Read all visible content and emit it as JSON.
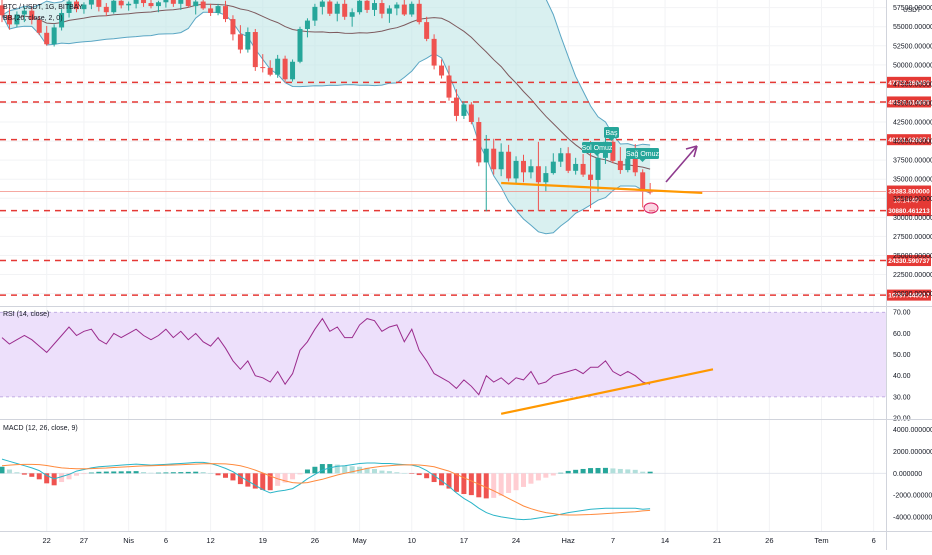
{
  "colors": {
    "up": "#26a69a",
    "down": "#ef5350",
    "bb": "#7d5a5e",
    "bbFill": "#b9e4e4",
    "bbLower": "#5aa6c4",
    "level": "#e53935",
    "trend": "#ff9800",
    "arrow": "#8e3a8e",
    "rsiLine": "#9b2c8d",
    "rsiBand": "#ede0fb",
    "macdLine": "#2bb5c8",
    "signalLine": "#ff8a3d",
    "histUpStrong": "#26a69a",
    "histUpWeak": "#b2dfdb",
    "histDownStrong": "#ef5350",
    "histDownWeak": "#ffcdd2",
    "tagBg": "#26a69a",
    "priceTag": "#e53935"
  },
  "header": {
    "title": "BTC / USDT, 1G, BITBAY",
    "indicator": "BB (20, close, 2, 0)",
    "currency": "USDT"
  },
  "rsi_panel": {
    "title": "RSI (14, close)"
  },
  "macd_panel": {
    "title": "MACD (12, 26, close, 9)"
  },
  "annotations": {
    "left_shoulder": "Sol Omuz",
    "head": "Baş",
    "right_shoulder": "Sağ Omuz"
  },
  "price_box": {
    "value": "33383.800000",
    "countdown": "16:14:49"
  },
  "chart_data": [
    {
      "type": "candlestick",
      "title": "BTC / USDT, 1G, BITBAY",
      "x_ticks": [
        "22",
        "27",
        "Nis",
        "6",
        "12",
        "19",
        "26",
        "May",
        "10",
        "17",
        "24",
        "Haz",
        "7",
        "14",
        "21",
        "26",
        "Tem",
        "6"
      ],
      "y_ticks": [
        "57500.000000",
        "55000.000000",
        "52500.000000",
        "50000.000000",
        "47500.000000",
        "45000.000000",
        "42500.000000",
        "40000.000000",
        "37500.000000",
        "35000.000000",
        "32500.000000",
        "30000.000000",
        "27500.000000",
        "25000.000000",
        "22500.000000",
        "20000.000000"
      ],
      "ylim": [
        18500,
        58500
      ],
      "horizontal_levels": [
        "47702.260450",
        "45129.514685",
        "40181.926674",
        "30880.461213",
        "24330.590737",
        "19797.440917"
      ],
      "current_price": "33383.800000",
      "candles": [
        [
          57800,
          58800,
          55600,
          56500
        ],
        [
          56500,
          57400,
          54600,
          55300
        ],
        [
          55300,
          57000,
          54900,
          56600
        ],
        [
          56600,
          57600,
          55600,
          57100
        ],
        [
          57100,
          57700,
          55300,
          55900
        ],
        [
          55900,
          56400,
          53900,
          54200
        ],
        [
          54200,
          55100,
          52500,
          52700
        ],
        [
          52700,
          55300,
          52400,
          54900
        ],
        [
          54900,
          57300,
          54500,
          56800
        ],
        [
          56800,
          58700,
          56200,
          58300
        ],
        [
          58300,
          58900,
          56900,
          57300
        ],
        [
          57300,
          58200,
          56700,
          57900
        ],
        [
          57900,
          58800,
          57300,
          58500
        ],
        [
          58500,
          58900,
          57000,
          57600
        ],
        [
          57600,
          58100,
          56400,
          56900
        ],
        [
          56900,
          58600,
          56700,
          58400
        ],
        [
          58400,
          58800,
          57400,
          57800
        ],
        [
          57800,
          58300,
          57100,
          58000
        ],
        [
          58000,
          58900,
          57400,
          58600
        ],
        [
          58600,
          58900,
          57600,
          58100
        ],
        [
          58100,
          58800,
          57400,
          57700
        ],
        [
          57700,
          58400,
          56900,
          58200
        ],
        [
          58200,
          58900,
          57500,
          58700
        ],
        [
          58700,
          58900,
          57600,
          58000
        ],
        [
          58000,
          58700,
          57200,
          58500
        ],
        [
          58500,
          58900,
          57500,
          57700
        ],
        [
          57700,
          58600,
          56600,
          58300
        ],
        [
          58300,
          58900,
          57200,
          57400
        ],
        [
          57400,
          58000,
          56400,
          56800
        ],
        [
          56800,
          58000,
          56500,
          57700
        ],
        [
          57700,
          58400,
          55600,
          56000
        ],
        [
          56000,
          56500,
          53200,
          54000
        ],
        [
          54000,
          55200,
          51500,
          52000
        ],
        [
          52000,
          54900,
          51600,
          54300
        ],
        [
          54300,
          54700,
          49200,
          49700
        ],
        [
          49700,
          51400,
          49000,
          49600
        ],
        [
          49600,
          50600,
          48500,
          48700
        ],
        [
          48700,
          51300,
          48300,
          50800
        ],
        [
          50800,
          51200,
          47700,
          48100
        ],
        [
          48100,
          50700,
          47800,
          50400
        ],
        [
          50400,
          55000,
          50200,
          54700
        ],
        [
          54700,
          56100,
          53600,
          55800
        ],
        [
          55800,
          58000,
          55100,
          57600
        ],
        [
          57600,
          58800,
          56600,
          58300
        ],
        [
          58300,
          58900,
          56400,
          56700
        ],
        [
          56700,
          58300,
          55700,
          58000
        ],
        [
          58000,
          58800,
          55900,
          56300
        ],
        [
          56300,
          57400,
          55000,
          56900
        ],
        [
          56900,
          58900,
          56600,
          58400
        ],
        [
          58400,
          58900,
          56800,
          57200
        ],
        [
          57200,
          58600,
          56400,
          58100
        ],
        [
          58100,
          58700,
          56100,
          56700
        ],
        [
          56700,
          57800,
          55500,
          57400
        ],
        [
          57400,
          58200,
          56500,
          57900
        ],
        [
          57900,
          58600,
          56400,
          56600
        ],
        [
          56600,
          58300,
          56300,
          58000
        ],
        [
          58000,
          58800,
          55300,
          55600
        ],
        [
          55600,
          56300,
          53100,
          53400
        ],
        [
          53400,
          54000,
          49400,
          49900
        ],
        [
          49900,
          50700,
          48200,
          48600
        ],
        [
          48600,
          49900,
          45300,
          45700
        ],
        [
          45700,
          46800,
          42600,
          43300
        ],
        [
          43300,
          45200,
          42900,
          44800
        ],
        [
          44800,
          45100,
          42200,
          42500
        ],
        [
          42500,
          43100,
          36700,
          37200
        ],
        [
          37200,
          40800,
          30800,
          39000
        ],
        [
          39000,
          40300,
          35600,
          36300
        ],
        [
          36300,
          39700,
          35400,
          38600
        ],
        [
          38600,
          39500,
          34700,
          35100
        ],
        [
          35100,
          38000,
          34400,
          37400
        ],
        [
          37400,
          38200,
          34600,
          35900
        ],
        [
          35900,
          37600,
          35100,
          36700
        ],
        [
          36700,
          39900,
          30800,
          34600
        ],
        [
          34600,
          36700,
          33400,
          35800
        ],
        [
          35800,
          38400,
          35600,
          37300
        ],
        [
          37300,
          39100,
          36600,
          38400
        ],
        [
          38400,
          39200,
          35800,
          36100
        ],
        [
          36100,
          37800,
          35600,
          37000
        ],
        [
          37000,
          38300,
          35300,
          35600
        ],
        [
          35600,
          40000,
          31200,
          34900
        ],
        [
          34900,
          38200,
          33300,
          37800
        ],
        [
          37800,
          40400,
          37000,
          39900
        ],
        [
          39900,
          41500,
          37100,
          37400
        ],
        [
          37400,
          39200,
          35700,
          36200
        ],
        [
          36200,
          38100,
          35900,
          37700
        ],
        [
          37700,
          39600,
          35400,
          35900
        ],
        [
          35900,
          36300,
          31300,
          33400
        ],
        [
          33400,
          34500,
          33000,
          33383.8
        ]
      ]
    },
    {
      "type": "line",
      "title": "RSI (14, close)",
      "y_ticks": [
        "70.00",
        "60.00",
        "50.00",
        "40.00",
        "30.00",
        "20.00"
      ],
      "ylim": [
        20,
        72
      ],
      "band": [
        30,
        70
      ],
      "series": [
        {
          "values": [
            58,
            55,
            57,
            59,
            57,
            54,
            51,
            55,
            59,
            63,
            59,
            61,
            62,
            57,
            55,
            60,
            58,
            60,
            62,
            59,
            57,
            59,
            62,
            58,
            61,
            57,
            60,
            56,
            54,
            58,
            53,
            47,
            43,
            47,
            40,
            39,
            37,
            42,
            36,
            41,
            52,
            56,
            62,
            67,
            61,
            63,
            58,
            58,
            64,
            67,
            66,
            61,
            63,
            64,
            56,
            62,
            52,
            47,
            41,
            39,
            37,
            34,
            38,
            35,
            31,
            40,
            37,
            39,
            36,
            39,
            38,
            42,
            36,
            37,
            40,
            41,
            42,
            43,
            41,
            44,
            44,
            47,
            42,
            40,
            42,
            40,
            37,
            36
          ]
        }
      ]
    },
    {
      "type": "line",
      "title": "MACD (12, 26, close, 9)",
      "y_ticks": [
        "4000.000000",
        "2000.000000",
        "0.000000",
        "-2000.000000",
        "-4000.000000"
      ],
      "ylim": [
        -5200,
        4800
      ],
      "series": [
        {
          "values": [
            1300,
            1100,
            900,
            700,
            500,
            250,
            -200,
            -500,
            -300,
            -100,
            200,
            350,
            500,
            600,
            650,
            700,
            750,
            800,
            850,
            800,
            750,
            780,
            820,
            860,
            900,
            950,
            1000,
            1000,
            900,
            700,
            450,
            150,
            -300,
            -700,
            -1100,
            -1500,
            -1800,
            -1650,
            -1550,
            -1400,
            -1000,
            -500,
            -100,
            300,
            500,
            650,
            700,
            800,
            900,
            950,
            950,
            900,
            900,
            850,
            800,
            750,
            600,
            250,
            -200,
            -700,
            -1200,
            -1800,
            -2300,
            -2700,
            -3200,
            -3600,
            -3850,
            -4000,
            -4100,
            -4200,
            -4250,
            -4200,
            -4100,
            -4000,
            -3900,
            -3750,
            -3600,
            -3500,
            -3400,
            -3300,
            -3250,
            -3200,
            -3200,
            -3200,
            -3200,
            -3200,
            -3300,
            -3250
          ]
        },
        {
          "values": [
            700,
            750,
            800,
            820,
            820,
            800,
            720,
            600,
            500,
            450,
            420,
            420,
            430,
            460,
            490,
            530,
            570,
            610,
            650,
            680,
            700,
            720,
            740,
            760,
            790,
            820,
            850,
            880,
            890,
            880,
            860,
            800,
            690,
            520,
            300,
            30,
            -250,
            -500,
            -700,
            -850,
            -900,
            -850,
            -700,
            -550,
            -350,
            -150,
            0,
            150,
            300,
            450,
            550,
            650,
            700,
            750,
            770,
            780,
            760,
            700,
            600,
            400,
            200,
            -100,
            -400,
            -700,
            -1000,
            -1300,
            -1600,
            -1950,
            -2300,
            -2650,
            -3000,
            -3250,
            -3450,
            -3600,
            -3700,
            -3800,
            -3820,
            -3820,
            -3800,
            -3780,
            -3740,
            -3700,
            -3650,
            -3600,
            -3560,
            -3520,
            -3450,
            -3400
          ]
        }
      ],
      "histogram": [
        600,
        350,
        100,
        -120,
        -320,
        -550,
        -920,
        -1100,
        -800,
        -550,
        -220,
        -70,
        70,
        140,
        160,
        170,
        180,
        190,
        200,
        120,
        50,
        60,
        80,
        100,
        110,
        130,
        150,
        120,
        10,
        -180,
        -410,
        -650,
        -990,
        -1220,
        -1400,
        -1530,
        -1550,
        -1150,
        -850,
        -550,
        -100,
        350,
        600,
        850,
        850,
        800,
        700,
        650,
        600,
        500,
        400,
        250,
        200,
        100,
        30,
        -30,
        -160,
        -450,
        -800,
        -1100,
        -1400,
        -1700,
        -1900,
        -2000,
        -2200,
        -2300,
        -2250,
        -2050,
        -1800,
        -1550,
        -1250,
        -950,
        -650,
        -400,
        -200,
        50,
        220,
        320,
        400,
        480,
        490,
        500,
        450,
        400,
        360,
        320,
        150,
        150
      ]
    }
  ]
}
